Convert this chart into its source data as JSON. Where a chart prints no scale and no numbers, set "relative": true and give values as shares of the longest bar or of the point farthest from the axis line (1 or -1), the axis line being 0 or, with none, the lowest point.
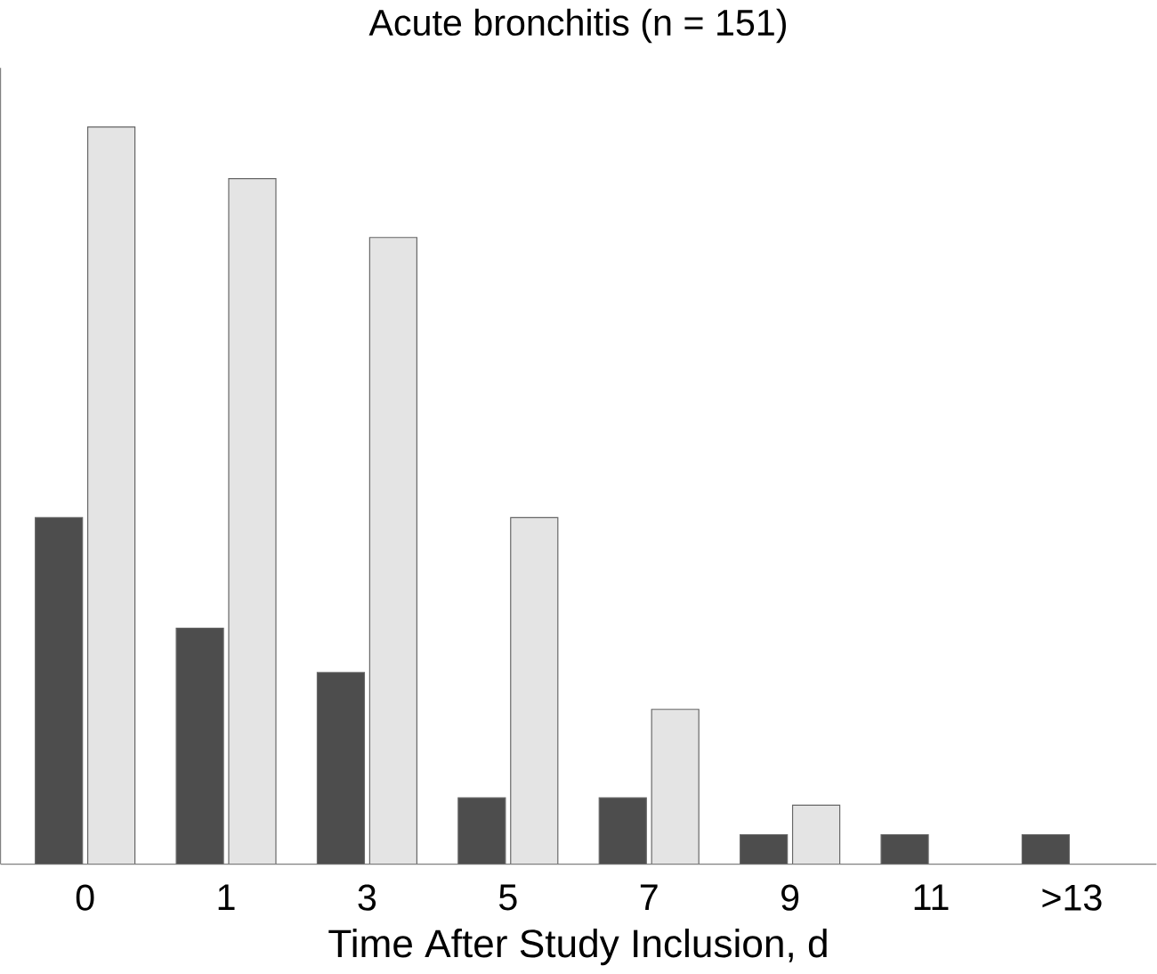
{
  "chart_data": {
    "type": "bar",
    "title": "Acute bronchitis (n = 151)",
    "xlabel": "Time After Study Inclusion, d",
    "relative": true,
    "categories": [
      "0",
      "1",
      "3",
      "5",
      "7",
      "9",
      "11",
      ">13"
    ],
    "series": [
      {
        "color": "#4d4d4d",
        "values": [
          0.47,
          0.32,
          0.26,
          0.09,
          0.09,
          0.04,
          0.04,
          0.04
        ]
      },
      {
        "color": "#e4e4e4",
        "values": [
          1,
          0.93,
          0.85,
          0.47,
          0.21,
          0.08,
          null,
          null
        ]
      }
    ]
  }
}
